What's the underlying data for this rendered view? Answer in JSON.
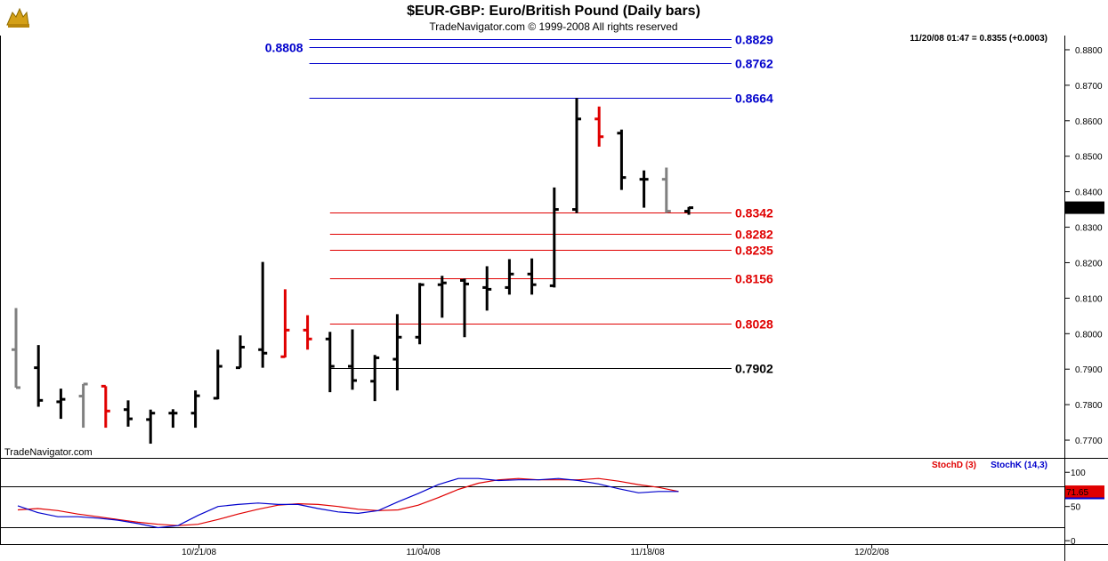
{
  "header": {
    "title": "$EUR-GBP:  Euro/British Pound  (Daily bars)",
    "copyright": "TradeNavigator.com © 1999-2008 All rights reserved",
    "quote": "11/20/08 01:47 = 0.8355 (+0.0003)",
    "watermark": "TradeNavigator.com",
    "logo_icon": "gold-bull-logo-icon"
  },
  "colors": {
    "black": "#000000",
    "red": "#e00000",
    "gray": "#808080",
    "blue": "#0000cc",
    "stoch_d": "#e00000",
    "stoch_k": "#0000cc"
  },
  "chart_data": [
    {
      "type": "ohlc",
      "title": "$EUR-GBP:  Euro/British Pound  (Daily bars)",
      "ylim": [
        0.765,
        0.884
      ],
      "y_ticks": [
        "0.8800",
        "0.8700",
        "0.8600",
        "0.8500",
        "0.8400",
        "0.8300",
        "0.8200",
        "0.8100",
        "0.8000",
        "0.7900",
        "0.7800",
        "0.7700"
      ],
      "x_ticks": [
        "10/21/08",
        "11/04/08",
        "11/18/08",
        "12/02/08"
      ],
      "x_tick_index": [
        8,
        18,
        28,
        38
      ],
      "last_price_label": "0.8355",
      "bars": [
        {
          "o": 0.7955,
          "h": 0.8072,
          "l": 0.7848,
          "c": 0.7848,
          "color": "gray"
        },
        {
          "o": 0.7904,
          "h": 0.7968,
          "l": 0.7794,
          "c": 0.7812,
          "color": "black"
        },
        {
          "o": 0.7808,
          "h": 0.7845,
          "l": 0.776,
          "c": 0.7815,
          "color": "black"
        },
        {
          "o": 0.7824,
          "h": 0.7858,
          "l": 0.7735,
          "c": 0.7858,
          "color": "gray"
        },
        {
          "o": 0.7852,
          "h": 0.7852,
          "l": 0.7735,
          "c": 0.7782,
          "color": "red"
        },
        {
          "o": 0.7786,
          "h": 0.7812,
          "l": 0.7738,
          "c": 0.776,
          "color": "black"
        },
        {
          "o": 0.7758,
          "h": 0.7786,
          "l": 0.769,
          "c": 0.7776,
          "color": "black"
        },
        {
          "o": 0.7776,
          "h": 0.7787,
          "l": 0.7735,
          "c": 0.7776,
          "color": "black"
        },
        {
          "o": 0.7776,
          "h": 0.784,
          "l": 0.7735,
          "c": 0.7825,
          "color": "black"
        },
        {
          "o": 0.7818,
          "h": 0.7955,
          "l": 0.7815,
          "c": 0.7908,
          "color": "black"
        },
        {
          "o": 0.7904,
          "h": 0.7995,
          "l": 0.7904,
          "c": 0.7962,
          "color": "black"
        },
        {
          "o": 0.7955,
          "h": 0.8202,
          "l": 0.7904,
          "c": 0.7945,
          "color": "black"
        },
        {
          "o": 0.7935,
          "h": 0.8125,
          "l": 0.7933,
          "c": 0.801,
          "color": "red"
        },
        {
          "o": 0.801,
          "h": 0.8052,
          "l": 0.7955,
          "c": 0.7985,
          "color": "red"
        },
        {
          "o": 0.7985,
          "h": 0.8005,
          "l": 0.7835,
          "c": 0.7908,
          "color": "black"
        },
        {
          "o": 0.7908,
          "h": 0.8012,
          "l": 0.7842,
          "c": 0.7868,
          "color": "black"
        },
        {
          "o": 0.7866,
          "h": 0.794,
          "l": 0.781,
          "c": 0.7932,
          "color": "black"
        },
        {
          "o": 0.7928,
          "h": 0.8055,
          "l": 0.784,
          "c": 0.799,
          "color": "black"
        },
        {
          "o": 0.799,
          "h": 0.8143,
          "l": 0.797,
          "c": 0.8138,
          "color": "black"
        },
        {
          "o": 0.8138,
          "h": 0.8163,
          "l": 0.8045,
          "c": 0.8143,
          "color": "black"
        },
        {
          "o": 0.815,
          "h": 0.8155,
          "l": 0.799,
          "c": 0.814,
          "color": "black"
        },
        {
          "o": 0.813,
          "h": 0.819,
          "l": 0.8065,
          "c": 0.8125,
          "color": "black"
        },
        {
          "o": 0.813,
          "h": 0.821,
          "l": 0.811,
          "c": 0.8168,
          "color": "black"
        },
        {
          "o": 0.8168,
          "h": 0.8212,
          "l": 0.811,
          "c": 0.8138,
          "color": "black"
        },
        {
          "o": 0.8135,
          "h": 0.8412,
          "l": 0.813,
          "c": 0.835,
          "color": "black"
        },
        {
          "o": 0.835,
          "h": 0.8664,
          "l": 0.834,
          "c": 0.8605,
          "color": "black"
        },
        {
          "o": 0.8605,
          "h": 0.864,
          "l": 0.8527,
          "c": 0.8555,
          "color": "red"
        },
        {
          "o": 0.8565,
          "h": 0.8575,
          "l": 0.8405,
          "c": 0.844,
          "color": "black"
        },
        {
          "o": 0.8435,
          "h": 0.846,
          "l": 0.8355,
          "c": 0.8435,
          "color": "black"
        },
        {
          "o": 0.8435,
          "h": 0.8468,
          "l": 0.834,
          "c": 0.8345,
          "color": "gray"
        },
        {
          "o": 0.8345,
          "h": 0.8357,
          "l": 0.8335,
          "c": 0.8355,
          "color": "black"
        }
      ],
      "levels": [
        {
          "value": "0.8829",
          "color": "blue",
          "start": 13,
          "label_color": "blue"
        },
        {
          "value": "0.8808",
          "color": "blue",
          "start": 13,
          "label_side": "left",
          "label_color": "blue"
        },
        {
          "value": "0.8762",
          "color": "blue",
          "start": 13,
          "label_color": "blue"
        },
        {
          "value": "0.8664",
          "color": "blue",
          "start": 13,
          "label_color": "blue"
        },
        {
          "value": "0.8342",
          "color": "red",
          "start": 14,
          "label_color": "red"
        },
        {
          "value": "0.8282",
          "color": "red",
          "start": 14,
          "label_color": "red"
        },
        {
          "value": "0.8235",
          "color": "red",
          "start": 14,
          "label_color": "red"
        },
        {
          "value": "0.8156",
          "color": "red",
          "start": 14,
          "label_color": "red"
        },
        {
          "value": "0.8028",
          "color": "red",
          "start": 14,
          "label_color": "red"
        },
        {
          "value": "0.7902",
          "color": "black",
          "start": 14,
          "label_color": "black"
        }
      ]
    },
    {
      "type": "line",
      "title": "",
      "ylim": [
        -5,
        112
      ],
      "y_ticks": [
        "100",
        "50",
        "0"
      ],
      "hlines": [
        80,
        20
      ],
      "last_value_label": "71.65",
      "series": [
        {
          "name": "StochD (3)",
          "color": "red",
          "values": [
            45,
            47,
            44,
            39,
            35,
            31,
            27,
            24,
            22,
            24,
            31,
            39,
            46,
            52,
            54,
            53,
            50,
            46,
            44,
            45,
            52,
            63,
            75,
            84,
            89,
            91,
            89,
            89,
            89,
            91,
            87,
            82,
            78,
            72
          ]
        },
        {
          "name": "StochK (14,3)",
          "color": "blue",
          "values": [
            51,
            41,
            35,
            35,
            33,
            30,
            25,
            19,
            22,
            37,
            50,
            53,
            55,
            53,
            53,
            47,
            42,
            40,
            44,
            57,
            69,
            82,
            91,
            91,
            88,
            89,
            89,
            91,
            88,
            83,
            76,
            70,
            72,
            72
          ]
        }
      ]
    }
  ],
  "legend": {
    "stoch_d": "StochD (3)",
    "stoch_k": "StochK (14,3)"
  }
}
